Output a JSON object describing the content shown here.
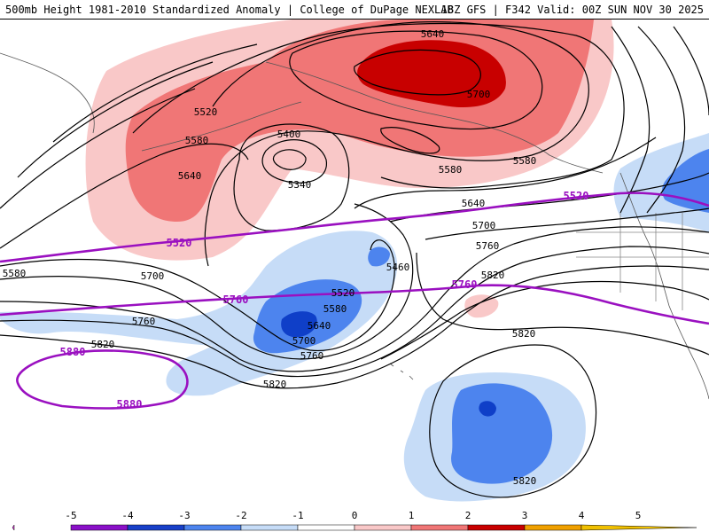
{
  "header": {
    "title_left": "500mb Height 1981-2010 Standardized Anomaly | College of DuPage NEXLAB",
    "title_right": "18Z GFS | F342 Valid: 00Z SUN NOV 30 2025"
  },
  "colors": {
    "anom_pos_1": "#f9c8c8",
    "anom_pos_2": "#f07676",
    "anom_pos_3": "#c80000",
    "anom_neg_1": "#c6dcf7",
    "anom_neg_2": "#4d84ee",
    "anom_neg_3": "#0f3fc8",
    "highlight_contour": "#9a10c0",
    "contour": "#000000"
  },
  "contour_labels": [
    {
      "id": "5640-top",
      "text": "5640"
    },
    {
      "id": "5700-top",
      "text": "5700"
    },
    {
      "id": "5520-nw",
      "text": "5520"
    },
    {
      "id": "5580-nw",
      "text": "5580"
    },
    {
      "id": "5640-nw",
      "text": "5640"
    },
    {
      "id": "5400",
      "text": "5400"
    },
    {
      "id": "5340",
      "text": "5340"
    },
    {
      "id": "5580-mid",
      "text": "5580"
    },
    {
      "id": "5580-ne",
      "text": "5580"
    },
    {
      "id": "5640-mid",
      "text": "5640"
    },
    {
      "id": "5700-e",
      "text": "5700"
    },
    {
      "id": "5760-e",
      "text": "5760"
    },
    {
      "id": "5820-e",
      "text": "5820"
    },
    {
      "id": "5580-w",
      "text": "5580"
    },
    {
      "id": "5700-w",
      "text": "5700"
    },
    {
      "id": "5760-w",
      "text": "5760"
    },
    {
      "id": "5820-w",
      "text": "5820"
    },
    {
      "id": "5460",
      "text": "5460"
    },
    {
      "id": "5520-low",
      "text": "5520"
    },
    {
      "id": "5580-low",
      "text": "5580"
    },
    {
      "id": "5640-low",
      "text": "5640"
    },
    {
      "id": "5700-low",
      "text": "5700"
    },
    {
      "id": "5760-low",
      "text": "5760"
    },
    {
      "id": "5820-low",
      "text": "5820"
    },
    {
      "id": "5820-se",
      "text": "5820"
    },
    {
      "id": "5820-s",
      "text": "5820"
    }
  ],
  "highlight_labels": [
    {
      "id": "h5520-ne",
      "text": "5520"
    },
    {
      "id": "h5520-w",
      "text": "5520"
    },
    {
      "id": "h5760-w",
      "text": "5760"
    },
    {
      "id": "h5760-e",
      "text": "5760"
    },
    {
      "id": "h5880-a",
      "text": "5880"
    },
    {
      "id": "h5880-b",
      "text": "5880"
    }
  ],
  "colorbar": {
    "ticks": [
      "-5",
      "-4",
      "-3",
      "-2",
      "-1",
      "0",
      "1",
      "2",
      "3",
      "4",
      "5"
    ],
    "colors": [
      "#e040e0",
      "#8a10c8",
      "#1840c8",
      "#4d84ee",
      "#c6dcf7",
      "#ffffff",
      "#f9c8c8",
      "#f07676",
      "#c80000",
      "#f0a000"
    ]
  }
}
